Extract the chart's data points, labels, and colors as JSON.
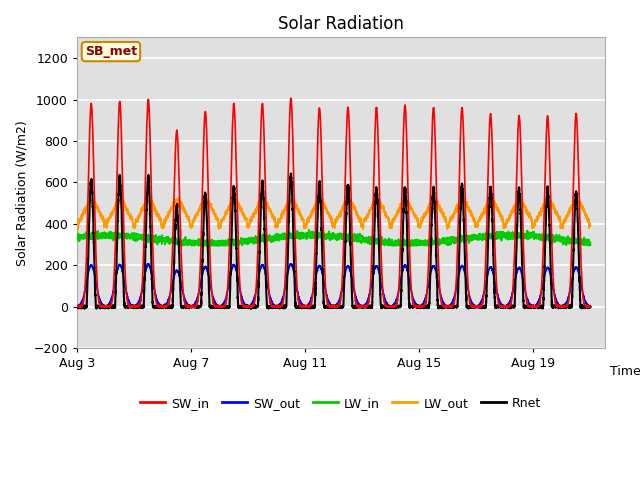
{
  "title": "Solar Radiation",
  "ylabel": "Solar Radiation (W/m2)",
  "xlabel": "Time",
  "xlim_days": [
    0,
    18.5
  ],
  "ylim": [
    -200,
    1300
  ],
  "yticks": [
    -200,
    0,
    200,
    400,
    600,
    800,
    1000,
    1200
  ],
  "xtick_positions": [
    0,
    4,
    8,
    12,
    16
  ],
  "xtick_labels": [
    "Aug 3",
    "Aug 7",
    "Aug 11",
    "Aug 15",
    "Aug 19"
  ],
  "station_label": "SB_met",
  "bg_color": "#e0e0e0",
  "grid_color": "#ffffff",
  "fig_bg": "#ffffff",
  "series": {
    "SW_in": {
      "color": "#ff0000",
      "lw": 1.2
    },
    "SW_out": {
      "color": "#0000ff",
      "lw": 1.2
    },
    "LW_in": {
      "color": "#00cc00",
      "lw": 1.2
    },
    "LW_out": {
      "color": "#ff9900",
      "lw": 1.2
    },
    "Rnet": {
      "color": "#000000",
      "lw": 1.5
    }
  },
  "n_days": 18,
  "pts_per_day": 288
}
